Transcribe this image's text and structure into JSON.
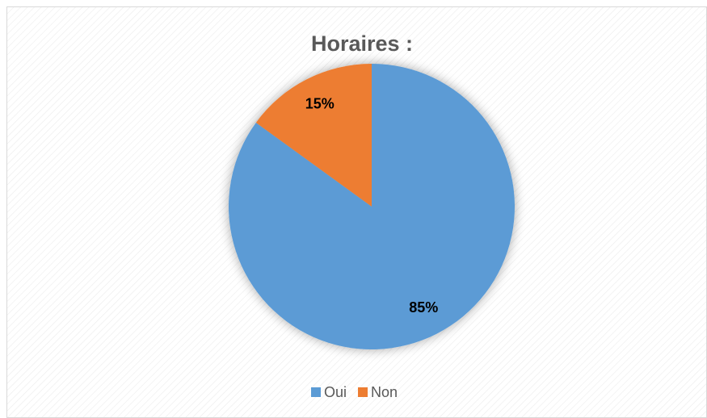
{
  "chart_data": {
    "type": "pie",
    "title": "Horaires :",
    "categories": [
      "Oui",
      "Non"
    ],
    "values": [
      85,
      15
    ],
    "value_labels": [
      "85%",
      "15%"
    ],
    "colors": [
      "#5b9bd5",
      "#ed7d31"
    ],
    "legend": "bottom"
  }
}
